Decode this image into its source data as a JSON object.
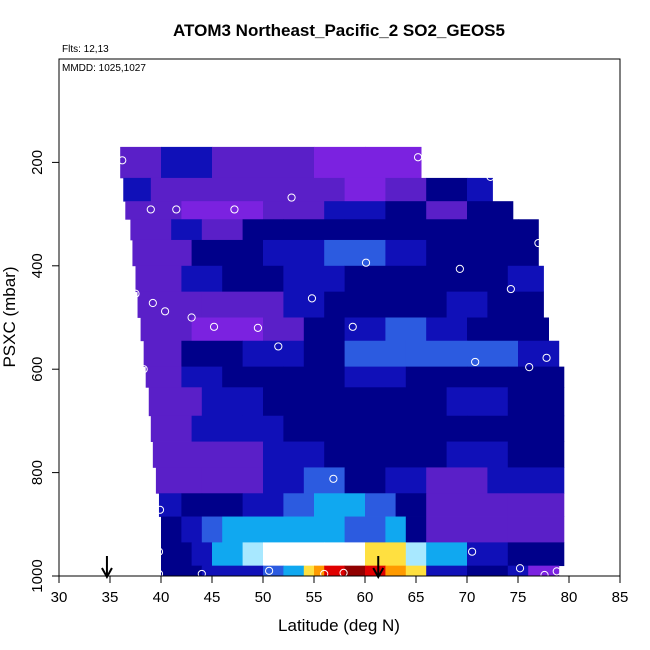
{
  "chart_data": {
    "type": "heatmap",
    "title": "ATOM3 Northeast_Pacific_2 SO2_GEOS5",
    "flights_label": "Flts: 12,13",
    "dates_label": "MMDD: 1025,1027",
    "xlabel": "Latitude (deg N)",
    "ylabel": "PSXC (mbar)",
    "xlim": [
      30,
      85
    ],
    "ylim": [
      1000,
      0
    ],
    "x_ticks": [
      "30",
      "35",
      "40",
      "45",
      "50",
      "55",
      "60",
      "65",
      "70",
      "75",
      "80",
      "85"
    ],
    "y_ticks": [
      "200",
      "400",
      "600",
      "800",
      "1000"
    ],
    "grid": false,
    "colors": {
      "violet": "#7b22e0",
      "purple": "#5a1fc8",
      "blue": "#1010b8",
      "navy": "#00008a",
      "mid_blue": "#2c5be0",
      "cyan": "#10a8f0",
      "light_cyan": "#a8e8ff",
      "white": "#ffffff",
      "yellow": "#ffe040",
      "orange": "#ff9a00",
      "red": "#e00000",
      "dark_red": "#900000"
    },
    "rows": [
      {
        "p0": 170,
        "p1": 230,
        "x0": 36.0,
        "x1": 65.5,
        "cells": [
          [
            36,
            "purple"
          ],
          [
            40,
            "blue"
          ],
          [
            45,
            "purple"
          ],
          [
            55,
            "violet"
          ],
          [
            60,
            "violet"
          ]
        ]
      },
      {
        "p0": 230,
        "p1": 275,
        "x0": 36.3,
        "x1": 72.5,
        "cells": [
          [
            36.3,
            "blue"
          ],
          [
            39,
            "purple"
          ],
          [
            50,
            "purple"
          ],
          [
            58,
            "violet"
          ],
          [
            62,
            "purple"
          ],
          [
            66,
            "navy"
          ],
          [
            70,
            "blue"
          ]
        ]
      },
      {
        "p0": 275,
        "p1": 310,
        "x0": 36.5,
        "x1": 74.5,
        "cells": [
          [
            36.5,
            "purple"
          ],
          [
            42,
            "violet"
          ],
          [
            50,
            "purple"
          ],
          [
            56,
            "blue"
          ],
          [
            62,
            "navy"
          ],
          [
            66,
            "purple"
          ],
          [
            70,
            "navy"
          ]
        ]
      },
      {
        "p0": 310,
        "p1": 350,
        "x0": 37.0,
        "x1": 77.0,
        "cells": [
          [
            37,
            "purple"
          ],
          [
            41,
            "blue"
          ],
          [
            44,
            "purple"
          ],
          [
            48,
            "navy"
          ],
          [
            52,
            "navy"
          ],
          [
            58,
            "navy"
          ],
          [
            64,
            "navy"
          ],
          [
            70,
            "navy"
          ],
          [
            75,
            "navy"
          ]
        ]
      },
      {
        "p0": 350,
        "p1": 400,
        "x0": 37.2,
        "x1": 77.0,
        "cells": [
          [
            37.2,
            "purple"
          ],
          [
            43,
            "navy"
          ],
          [
            50,
            "blue"
          ],
          [
            56,
            "mid_blue"
          ],
          [
            62,
            "blue"
          ],
          [
            66,
            "navy"
          ],
          [
            72,
            "navy"
          ]
        ]
      },
      {
        "p0": 400,
        "p1": 450,
        "x0": 37.5,
        "x1": 77.5,
        "cells": [
          [
            37.5,
            "purple"
          ],
          [
            42,
            "blue"
          ],
          [
            46,
            "navy"
          ],
          [
            52,
            "blue"
          ],
          [
            58,
            "navy"
          ],
          [
            62,
            "navy"
          ],
          [
            68,
            "navy"
          ],
          [
            74,
            "blue"
          ]
        ]
      },
      {
        "p0": 450,
        "p1": 500,
        "x0": 37.7,
        "x1": 77.5,
        "cells": [
          [
            37.7,
            "purple"
          ],
          [
            44,
            "purple"
          ],
          [
            52,
            "blue"
          ],
          [
            56,
            "navy"
          ],
          [
            62,
            "navy"
          ],
          [
            68,
            "blue"
          ],
          [
            72,
            "navy"
          ]
        ]
      },
      {
        "p0": 500,
        "p1": 545,
        "x0": 38.0,
        "x1": 78.0,
        "cells": [
          [
            38,
            "purple"
          ],
          [
            43,
            "violet"
          ],
          [
            50,
            "purple"
          ],
          [
            54,
            "navy"
          ],
          [
            58,
            "blue"
          ],
          [
            62,
            "mid_blue"
          ],
          [
            66,
            "blue"
          ],
          [
            70,
            "navy"
          ],
          [
            74,
            "navy"
          ]
        ]
      },
      {
        "p0": 545,
        "p1": 595,
        "x0": 38.3,
        "x1": 79.0,
        "cells": [
          [
            38.3,
            "purple"
          ],
          [
            42,
            "navy"
          ],
          [
            48,
            "blue"
          ],
          [
            54,
            "navy"
          ],
          [
            58,
            "mid_blue"
          ],
          [
            64,
            "mid_blue"
          ],
          [
            70,
            "mid_blue"
          ],
          [
            75,
            "blue"
          ]
        ]
      },
      {
        "p0": 595,
        "p1": 635,
        "x0": 38.5,
        "x1": 79.5,
        "cells": [
          [
            38.5,
            "purple"
          ],
          [
            42,
            "blue"
          ],
          [
            46,
            "navy"
          ],
          [
            52,
            "navy"
          ],
          [
            58,
            "blue"
          ],
          [
            64,
            "navy"
          ],
          [
            70,
            "navy"
          ],
          [
            74,
            "navy"
          ]
        ]
      },
      {
        "p0": 635,
        "p1": 690,
        "x0": 38.8,
        "x1": 79.5,
        "cells": [
          [
            38.8,
            "purple"
          ],
          [
            44,
            "blue"
          ],
          [
            50,
            "navy"
          ],
          [
            56,
            "navy"
          ],
          [
            62,
            "navy"
          ],
          [
            68,
            "blue"
          ],
          [
            74,
            "navy"
          ]
        ]
      },
      {
        "p0": 690,
        "p1": 740,
        "x0": 39.0,
        "x1": 79.5,
        "cells": [
          [
            39,
            "purple"
          ],
          [
            43,
            "blue"
          ],
          [
            48,
            "blue"
          ],
          [
            52,
            "navy"
          ],
          [
            58,
            "navy"
          ],
          [
            64,
            "navy"
          ],
          [
            70,
            "navy"
          ],
          [
            75,
            "navy"
          ]
        ]
      },
      {
        "p0": 740,
        "p1": 790,
        "x0": 39.2,
        "x1": 79.5,
        "cells": [
          [
            39.2,
            "purple"
          ],
          [
            45,
            "purple"
          ],
          [
            50,
            "blue"
          ],
          [
            56,
            "navy"
          ],
          [
            62,
            "navy"
          ],
          [
            68,
            "blue"
          ],
          [
            74,
            "navy"
          ]
        ]
      },
      {
        "p0": 790,
        "p1": 840,
        "x0": 39.5,
        "x1": 79.5,
        "cells": [
          [
            39.5,
            "purple"
          ],
          [
            44,
            "purple"
          ],
          [
            50,
            "blue"
          ],
          [
            54,
            "mid_blue"
          ],
          [
            58,
            "navy"
          ],
          [
            62,
            "blue"
          ],
          [
            66,
            "purple"
          ],
          [
            72,
            "blue"
          ],
          [
            76,
            "blue"
          ]
        ]
      },
      {
        "p0": 840,
        "p1": 885,
        "x0": 39.8,
        "x1": 79.5,
        "cells": [
          [
            39.8,
            "blue"
          ],
          [
            42,
            "navy"
          ],
          [
            44,
            "navy"
          ],
          [
            48,
            "blue"
          ],
          [
            52,
            "mid_blue"
          ],
          [
            55,
            "cyan"
          ],
          [
            60,
            "mid_blue"
          ],
          [
            63,
            "navy"
          ],
          [
            66,
            "purple"
          ],
          [
            74,
            "purple"
          ]
        ]
      },
      {
        "p0": 885,
        "p1": 935,
        "x0": 40.0,
        "x1": 79.5,
        "cells": [
          [
            40,
            "navy"
          ],
          [
            42,
            "blue"
          ],
          [
            44,
            "mid_blue"
          ],
          [
            46,
            "cyan"
          ],
          [
            52,
            "cyan"
          ],
          [
            58,
            "mid_blue"
          ],
          [
            62,
            "cyan"
          ],
          [
            64,
            "navy"
          ],
          [
            66,
            "purple"
          ],
          [
            74,
            "purple"
          ]
        ]
      },
      {
        "p0": 935,
        "p1": 980,
        "x0": 40.0,
        "x1": 79.5,
        "cells": [
          [
            40,
            "navy"
          ],
          [
            43,
            "blue"
          ],
          [
            45,
            "cyan"
          ],
          [
            48,
            "light_cyan"
          ],
          [
            50,
            "white"
          ],
          [
            56,
            "white"
          ],
          [
            60,
            "yellow"
          ],
          [
            64,
            "light_cyan"
          ],
          [
            66,
            "cyan"
          ],
          [
            70,
            "blue"
          ],
          [
            74,
            "navy"
          ]
        ]
      },
      {
        "p0": 980,
        "p1": 1000,
        "x0": 40.0,
        "x1": 79.0,
        "cells": [
          [
            40,
            "navy"
          ],
          [
            44,
            "blue"
          ],
          [
            50,
            "mid_blue"
          ],
          [
            52,
            "cyan"
          ],
          [
            54,
            "yellow"
          ],
          [
            55,
            "orange"
          ],
          [
            56,
            "red"
          ],
          [
            58,
            "dark_red"
          ],
          [
            60,
            "red"
          ],
          [
            62,
            "orange"
          ],
          [
            64,
            "yellow"
          ],
          [
            66,
            "blue"
          ],
          [
            70,
            "navy"
          ],
          [
            74,
            "blue"
          ],
          [
            76,
            "violet"
          ]
        ]
      }
    ],
    "points": [
      [
        36.2,
        196
      ],
      [
        39.0,
        291
      ],
      [
        41.5,
        291
      ],
      [
        47.2,
        291
      ],
      [
        52.8,
        268
      ],
      [
        65.2,
        190
      ],
      [
        72.3,
        228
      ],
      [
        77.0,
        356
      ],
      [
        37.5,
        454
      ],
      [
        39.2,
        472
      ],
      [
        40.4,
        488
      ],
      [
        43.0,
        500
      ],
      [
        45.2,
        518
      ],
      [
        49.5,
        520
      ],
      [
        51.5,
        556
      ],
      [
        54.8,
        463
      ],
      [
        58.8,
        518
      ],
      [
        60.1,
        394
      ],
      [
        69.3,
        406
      ],
      [
        74.3,
        445
      ],
      [
        38.3,
        600
      ],
      [
        70.8,
        586
      ],
      [
        76.1,
        596
      ],
      [
        77.8,
        578
      ],
      [
        56.9,
        812
      ],
      [
        39.9,
        872
      ],
      [
        39.8,
        953
      ],
      [
        70.5,
        953
      ],
      [
        39.8,
        996
      ],
      [
        44.0,
        996
      ],
      [
        50.6,
        990
      ],
      [
        56.0,
        996
      ],
      [
        57.9,
        994
      ],
      [
        75.2,
        985
      ],
      [
        78.8,
        991
      ],
      [
        77.6,
        998
      ]
    ],
    "arrows": [
      34.7,
      61.3
    ]
  }
}
